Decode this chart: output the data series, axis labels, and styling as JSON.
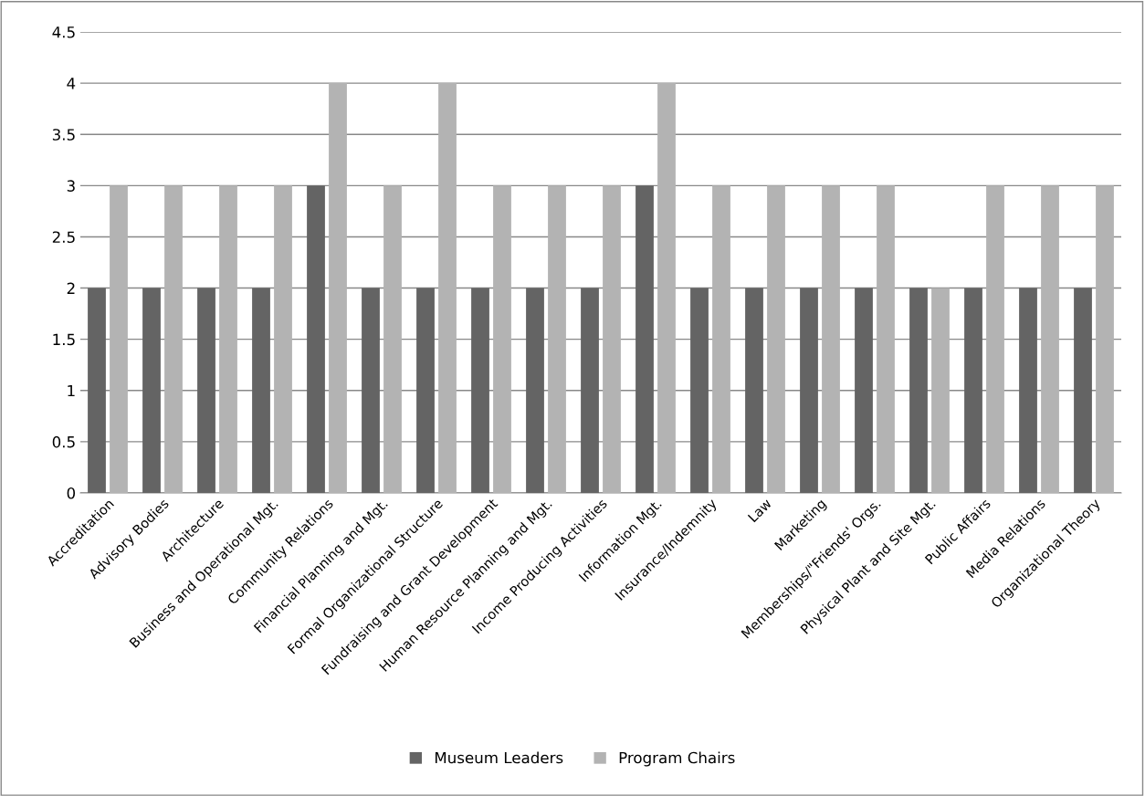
{
  "chart_data": {
    "type": "bar",
    "categories": [
      "Accreditation",
      "Advisory Bodies",
      "Architecture",
      "Business and Operational Mgt.",
      "Community Relations",
      "Financial Planning and Mgt.",
      "Formal Organizational Structure",
      "Fundraising and Grant Development",
      "Human Resource Planning and Mgt.",
      "Income Producing Activities",
      "Information Mgt.",
      "Insurance/Indemnity",
      "Law",
      "Marketing",
      "Memberships/\"Friends' Orgs.",
      "Physical Plant and Site Mgt.",
      "Public Affairs",
      "Media Relations",
      "Organizational Theory"
    ],
    "series": [
      {
        "name": "Museum Leaders",
        "color": "#646464",
        "values": [
          2,
          2,
          2,
          2,
          3,
          2,
          2,
          2,
          2,
          2,
          3,
          2,
          2,
          2,
          2,
          2,
          2,
          2,
          2
        ]
      },
      {
        "name": "Program Chairs",
        "color": "#b3b3b3",
        "values": [
          3,
          3,
          3,
          3,
          4,
          3,
          4,
          3,
          3,
          3,
          4,
          3,
          3,
          3,
          3,
          2,
          3,
          3,
          3
        ]
      }
    ],
    "ylim": [
      0,
      4.5
    ],
    "yticks": [
      0,
      0.5,
      1,
      1.5,
      2,
      2.5,
      3,
      3.5,
      4,
      4.5
    ],
    "grid": "y",
    "legend": "bottom"
  }
}
